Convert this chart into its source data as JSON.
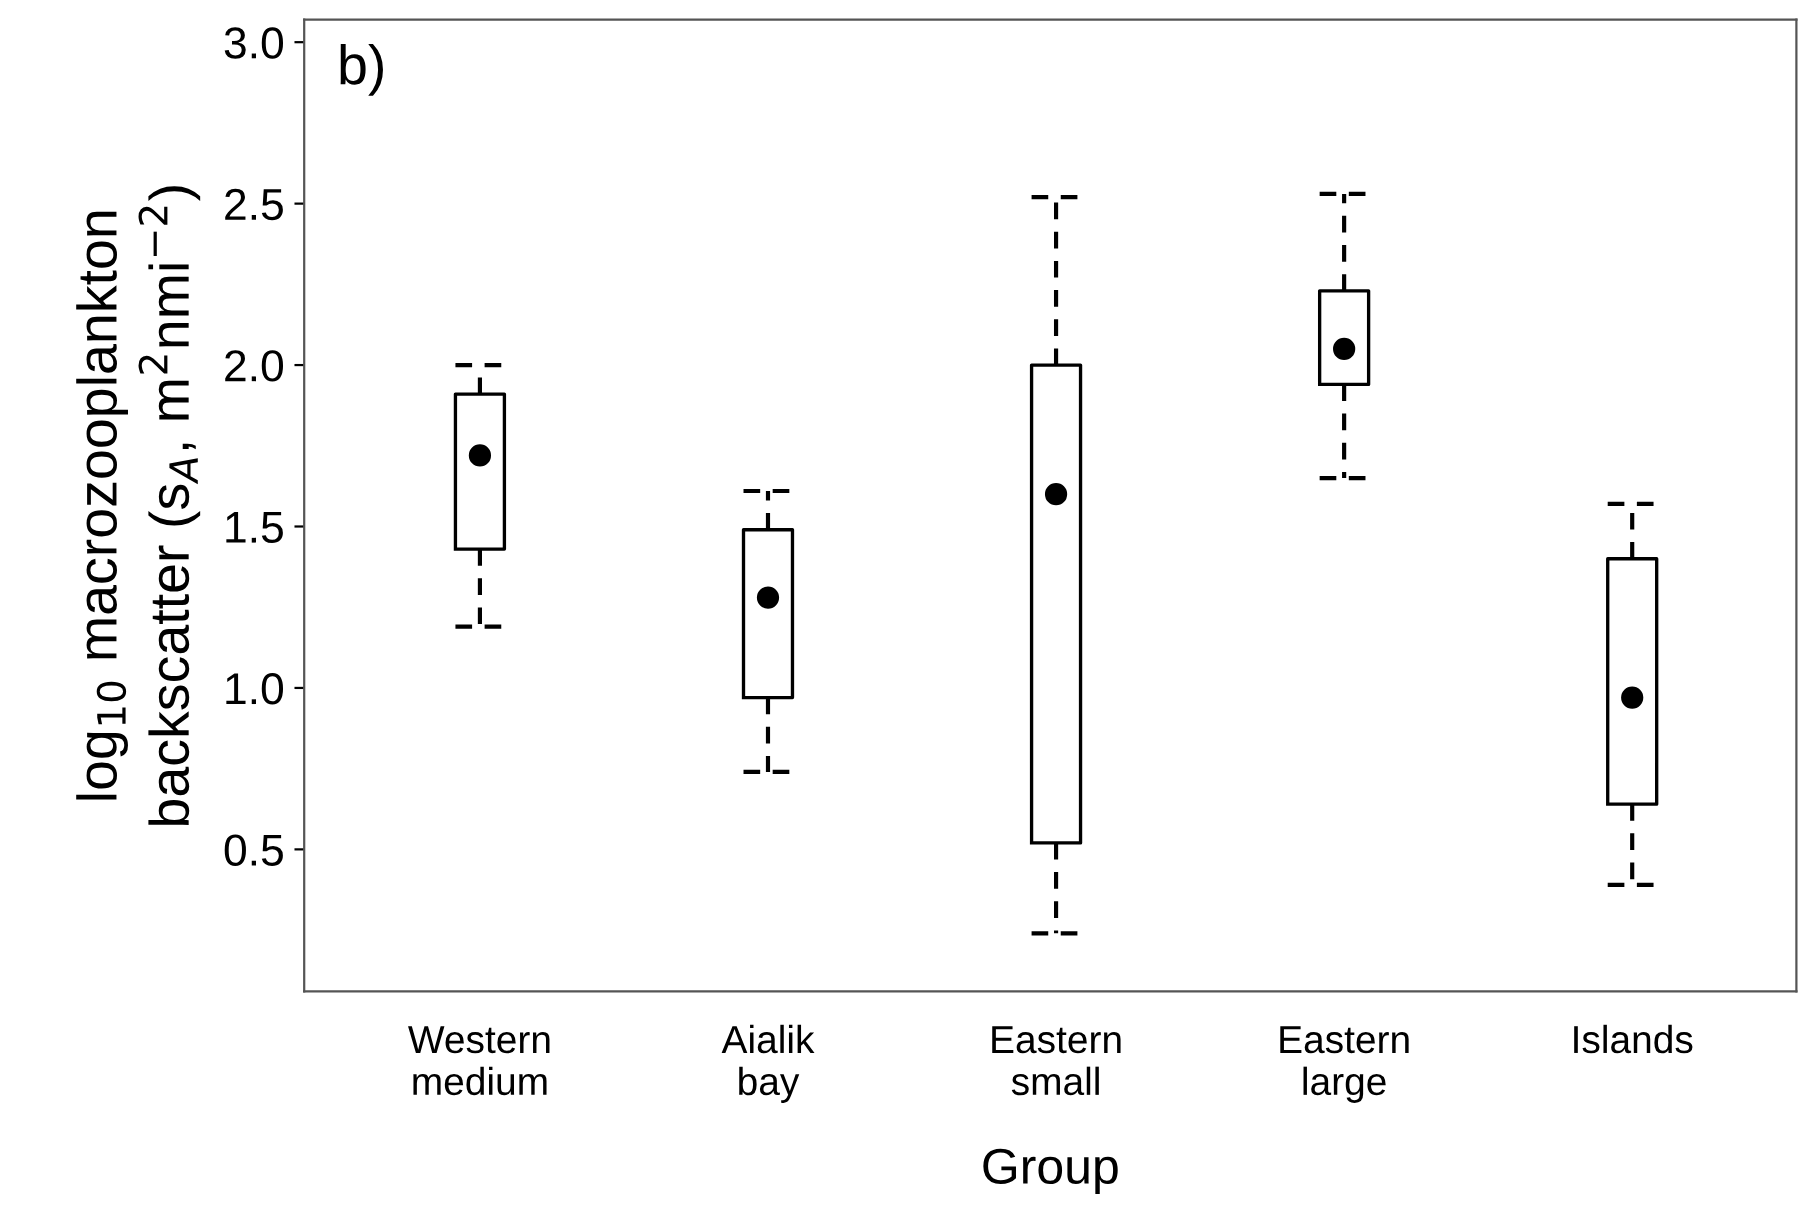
{
  "chart_data": {
    "type": "box",
    "categories": [
      "Western\nmedium",
      "Aialik\nbay",
      "Eastern\nsmall",
      "Eastern\nlarge",
      "Islands"
    ],
    "boxes": [
      {
        "low": 1.19,
        "q1": 1.43,
        "median": 1.72,
        "q3": 1.91,
        "high": 2.0
      },
      {
        "low": 0.74,
        "q1": 0.97,
        "median": 1.28,
        "q3": 1.49,
        "high": 1.61
      },
      {
        "low": 0.24,
        "q1": 0.52,
        "median": 1.6,
        "q3": 2.0,
        "high": 2.52
      },
      {
        "low": 1.65,
        "q1": 1.94,
        "median": 2.05,
        "q3": 2.23,
        "high": 2.53
      },
      {
        "low": 0.39,
        "q1": 0.64,
        "median": 0.97,
        "q3": 1.4,
        "high": 1.57
      }
    ],
    "color": "#000000",
    "line_style": "dashed",
    "xlabel": "Group",
    "ylabel": "log$_{10}$ macrozooplankton\nbackscatter (s$_{A}$, m$^{2}$nmi$^{−2}$)",
    "ylim": [
      0.06,
      3.07
    ],
    "yticks": [
      {
        "value": 0.5,
        "label": "0.5"
      },
      {
        "value": 1.0,
        "label": "1.0"
      },
      {
        "value": 1.5,
        "label": "1.5"
      },
      {
        "value": 2.0,
        "label": "2.0"
      },
      {
        "value": 2.5,
        "label": "2.5"
      },
      {
        "value": 3.0,
        "label": "3.0"
      }
    ],
    "annotations": [
      "b)"
    ],
    "grid": false,
    "legend": false
  }
}
